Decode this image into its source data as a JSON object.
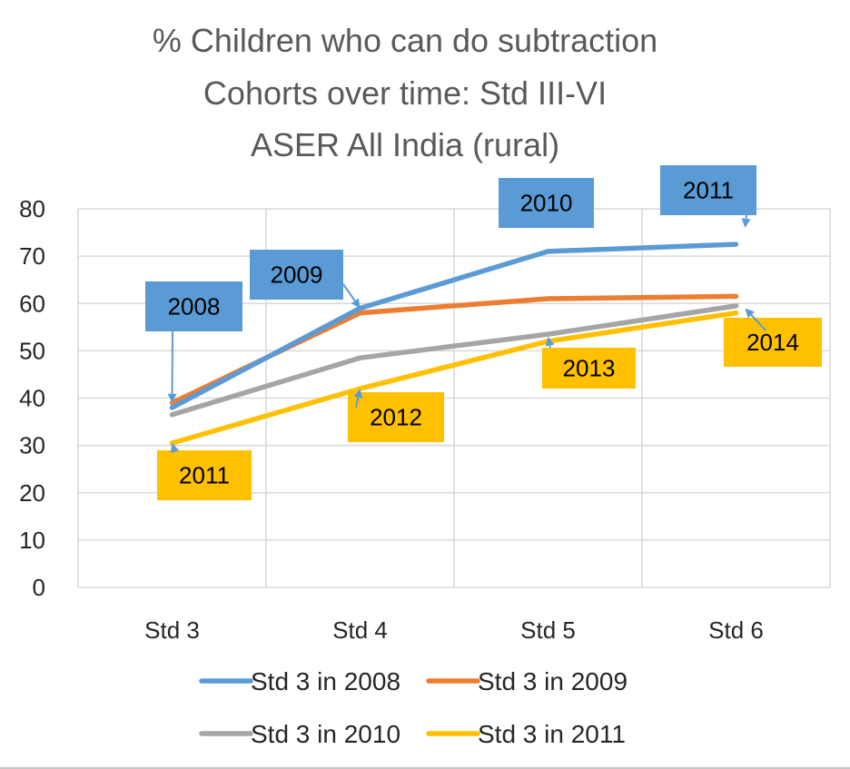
{
  "title_lines": [
    "% Children who can do subtraction",
    "Cohorts over time: Std III-VI",
    "ASER All India (rural)"
  ],
  "chart_data": {
    "type": "line",
    "title": "% Children who can do subtraction Cohorts over time: Std III-VI ASER All India (rural)",
    "xlabel": "",
    "ylabel": "",
    "categories": [
      "Std 3",
      "Std 4",
      "Std 5",
      "Std 6"
    ],
    "ylim": [
      0,
      80
    ],
    "yticks": [
      0,
      10,
      20,
      30,
      40,
      50,
      60,
      70,
      80
    ],
    "grid": true,
    "legend_position": "bottom",
    "series": [
      {
        "name": "Std 3 in 2008",
        "color": "#5b9bd5",
        "values": [
          38,
          59,
          71,
          72.5
        ]
      },
      {
        "name": "Std 3 in 2009",
        "color": "#ed7d31",
        "values": [
          39,
          58,
          61,
          61.5
        ]
      },
      {
        "name": "Std 3 in 2010",
        "color": "#a5a5a5",
        "values": [
          36.5,
          48.5,
          53.5,
          59.5
        ]
      },
      {
        "name": "Std 3 in 2011",
        "color": "#ffc000",
        "values": [
          30.5,
          42,
          52,
          58
        ]
      }
    ],
    "annotations": [
      {
        "text": "2008",
        "color": "#5b9bd5",
        "points_to": {
          "category": "Std 3",
          "value": 39
        }
      },
      {
        "text": "2009",
        "color": "#5b9bd5",
        "points_to": {
          "category": "Std 4",
          "value": 59
        }
      },
      {
        "text": "2010",
        "color": "#5b9bd5",
        "points_to": null
      },
      {
        "text": "2011",
        "color": "#5b9bd5",
        "points_to": {
          "category": "Std 6",
          "value": 76
        }
      },
      {
        "text": "2011",
        "color": "#ffc000",
        "points_to": {
          "category": "Std 3",
          "value": 30.5
        }
      },
      {
        "text": "2012",
        "color": "#ffc000",
        "points_to": {
          "category": "Std 4",
          "value": 42
        }
      },
      {
        "text": "2013",
        "color": "#ffc000",
        "points_to": {
          "category": "Std 5",
          "value": 53
        }
      },
      {
        "text": "2014",
        "color": "#ffc000",
        "points_to": {
          "category": "Std 6",
          "value": 59
        }
      }
    ]
  }
}
